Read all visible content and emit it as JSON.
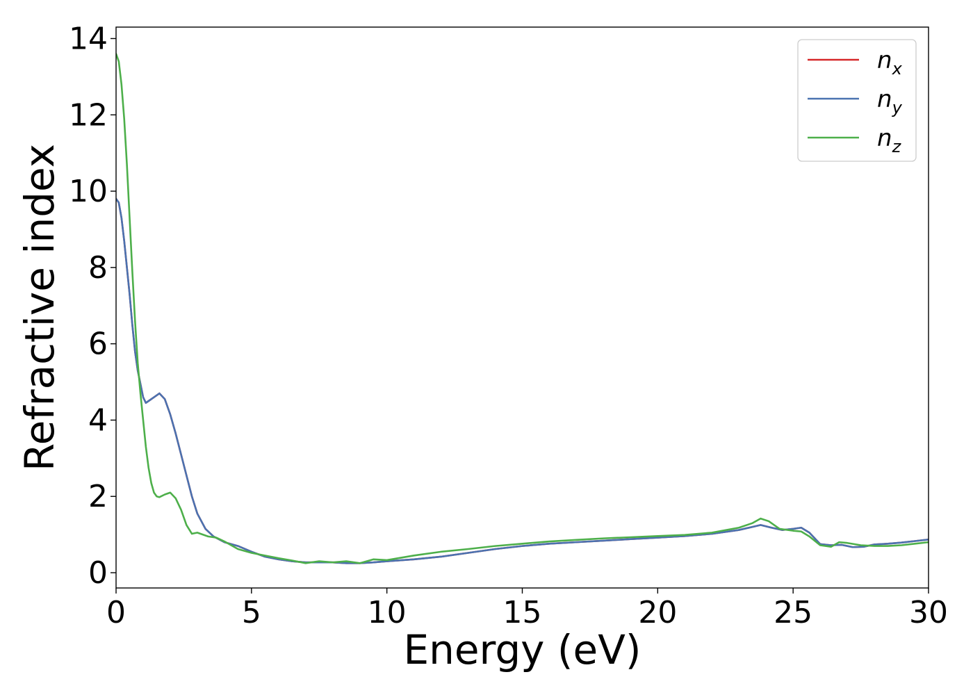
{
  "chart_data": {
    "type": "line",
    "title": "",
    "xlabel": "Energy (eV)",
    "ylabel": "Refractive index",
    "xlim": [
      0,
      30
    ],
    "ylim": [
      -0.4,
      14.3
    ],
    "xticks": [
      0,
      5,
      10,
      15,
      20,
      25,
      30
    ],
    "yticks": [
      0,
      2,
      4,
      6,
      8,
      10,
      12,
      14
    ],
    "grid": false,
    "legend_position": "top-right",
    "series": [
      {
        "name": "n_x",
        "label_base": "n",
        "label_sub": "x",
        "color": "#d62728",
        "x": [
          0,
          0.1,
          0.2,
          0.3,
          0.4,
          0.5,
          0.6,
          0.7,
          0.8,
          0.9,
          1.0,
          1.1,
          1.2,
          1.4,
          1.6,
          1.8,
          2.0,
          2.2,
          2.4,
          2.6,
          2.8,
          3.0,
          3.3,
          3.6,
          4.0,
          4.5,
          5.0,
          5.5,
          6.0,
          6.5,
          7.0,
          7.5,
          8.0,
          8.5,
          9.0,
          9.5,
          10.0,
          11.0,
          12.0,
          13.0,
          14.0,
          15.0,
          16.0,
          17.0,
          18.0,
          19.0,
          20.0,
          21.0,
          22.0,
          23.0,
          23.5,
          23.8,
          24.2,
          24.6,
          25.0,
          25.3,
          25.6,
          26.0,
          26.4,
          26.8,
          27.2,
          27.6,
          28.0,
          28.5,
          29.0,
          29.5,
          30.0
        ],
        "y": [
          9.8,
          9.7,
          9.3,
          8.7,
          8.0,
          7.3,
          6.5,
          5.8,
          5.3,
          4.95,
          4.6,
          4.45,
          4.5,
          4.6,
          4.7,
          4.55,
          4.15,
          3.65,
          3.1,
          2.55,
          2.0,
          1.55,
          1.15,
          0.95,
          0.8,
          0.7,
          0.55,
          0.42,
          0.35,
          0.3,
          0.27,
          0.27,
          0.27,
          0.25,
          0.25,
          0.27,
          0.3,
          0.35,
          0.42,
          0.52,
          0.62,
          0.7,
          0.76,
          0.8,
          0.84,
          0.88,
          0.92,
          0.96,
          1.02,
          1.12,
          1.2,
          1.25,
          1.18,
          1.12,
          1.15,
          1.18,
          1.05,
          0.75,
          0.72,
          0.73,
          0.67,
          0.68,
          0.74,
          0.76,
          0.79,
          0.83,
          0.87
        ]
      },
      {
        "name": "n_y",
        "label_base": "n",
        "label_sub": "y",
        "color": "#4a72b0",
        "x": [
          0,
          0.1,
          0.2,
          0.3,
          0.4,
          0.5,
          0.6,
          0.7,
          0.8,
          0.9,
          1.0,
          1.1,
          1.2,
          1.4,
          1.6,
          1.8,
          2.0,
          2.2,
          2.4,
          2.6,
          2.8,
          3.0,
          3.3,
          3.6,
          4.0,
          4.5,
          5.0,
          5.5,
          6.0,
          6.5,
          7.0,
          7.5,
          8.0,
          8.5,
          9.0,
          9.5,
          10.0,
          11.0,
          12.0,
          13.0,
          14.0,
          15.0,
          16.0,
          17.0,
          18.0,
          19.0,
          20.0,
          21.0,
          22.0,
          23.0,
          23.5,
          23.8,
          24.2,
          24.6,
          25.0,
          25.3,
          25.6,
          26.0,
          26.4,
          26.8,
          27.2,
          27.6,
          28.0,
          28.5,
          29.0,
          29.5,
          30.0
        ],
        "y": [
          9.8,
          9.7,
          9.3,
          8.7,
          8.0,
          7.3,
          6.5,
          5.8,
          5.3,
          4.95,
          4.6,
          4.45,
          4.5,
          4.6,
          4.7,
          4.55,
          4.15,
          3.65,
          3.1,
          2.55,
          2.0,
          1.55,
          1.15,
          0.95,
          0.8,
          0.7,
          0.55,
          0.42,
          0.35,
          0.3,
          0.27,
          0.27,
          0.27,
          0.25,
          0.25,
          0.27,
          0.3,
          0.35,
          0.42,
          0.52,
          0.62,
          0.7,
          0.76,
          0.8,
          0.84,
          0.88,
          0.92,
          0.96,
          1.02,
          1.12,
          1.2,
          1.25,
          1.18,
          1.12,
          1.15,
          1.18,
          1.05,
          0.75,
          0.72,
          0.73,
          0.67,
          0.68,
          0.74,
          0.76,
          0.79,
          0.83,
          0.87
        ]
      },
      {
        "name": "n_z",
        "label_base": "n",
        "label_sub": "z",
        "color": "#4daf4a",
        "x": [
          0,
          0.1,
          0.2,
          0.3,
          0.4,
          0.5,
          0.6,
          0.7,
          0.8,
          0.9,
          1.0,
          1.1,
          1.2,
          1.3,
          1.4,
          1.5,
          1.6,
          1.8,
          2.0,
          2.2,
          2.4,
          2.6,
          2.8,
          3.0,
          3.2,
          3.4,
          3.7,
          4.0,
          4.5,
          5.0,
          5.5,
          6.0,
          6.5,
          7.0,
          7.5,
          8.0,
          8.5,
          9.0,
          9.5,
          10.0,
          11.0,
          12.0,
          13.0,
          14.0,
          15.0,
          16.0,
          17.0,
          18.0,
          19.0,
          20.0,
          21.0,
          22.0,
          23.0,
          23.5,
          23.8,
          24.1,
          24.5,
          25.0,
          25.3,
          25.6,
          26.0,
          26.4,
          26.7,
          27.0,
          27.5,
          28.0,
          28.5,
          29.0,
          29.5,
          30.0
        ],
        "y": [
          13.6,
          13.4,
          12.8,
          11.9,
          10.7,
          9.3,
          7.9,
          6.6,
          5.5,
          4.7,
          4.0,
          3.3,
          2.75,
          2.35,
          2.1,
          2.0,
          1.98,
          2.05,
          2.1,
          1.95,
          1.65,
          1.25,
          1.02,
          1.05,
          1.0,
          0.95,
          0.92,
          0.82,
          0.62,
          0.52,
          0.45,
          0.38,
          0.32,
          0.25,
          0.3,
          0.27,
          0.3,
          0.25,
          0.35,
          0.33,
          0.45,
          0.55,
          0.62,
          0.7,
          0.76,
          0.82,
          0.86,
          0.9,
          0.93,
          0.96,
          0.99,
          1.05,
          1.18,
          1.3,
          1.42,
          1.35,
          1.15,
          1.1,
          1.08,
          0.95,
          0.72,
          0.68,
          0.8,
          0.78,
          0.72,
          0.7,
          0.7,
          0.72,
          0.76,
          0.8
        ]
      }
    ]
  }
}
